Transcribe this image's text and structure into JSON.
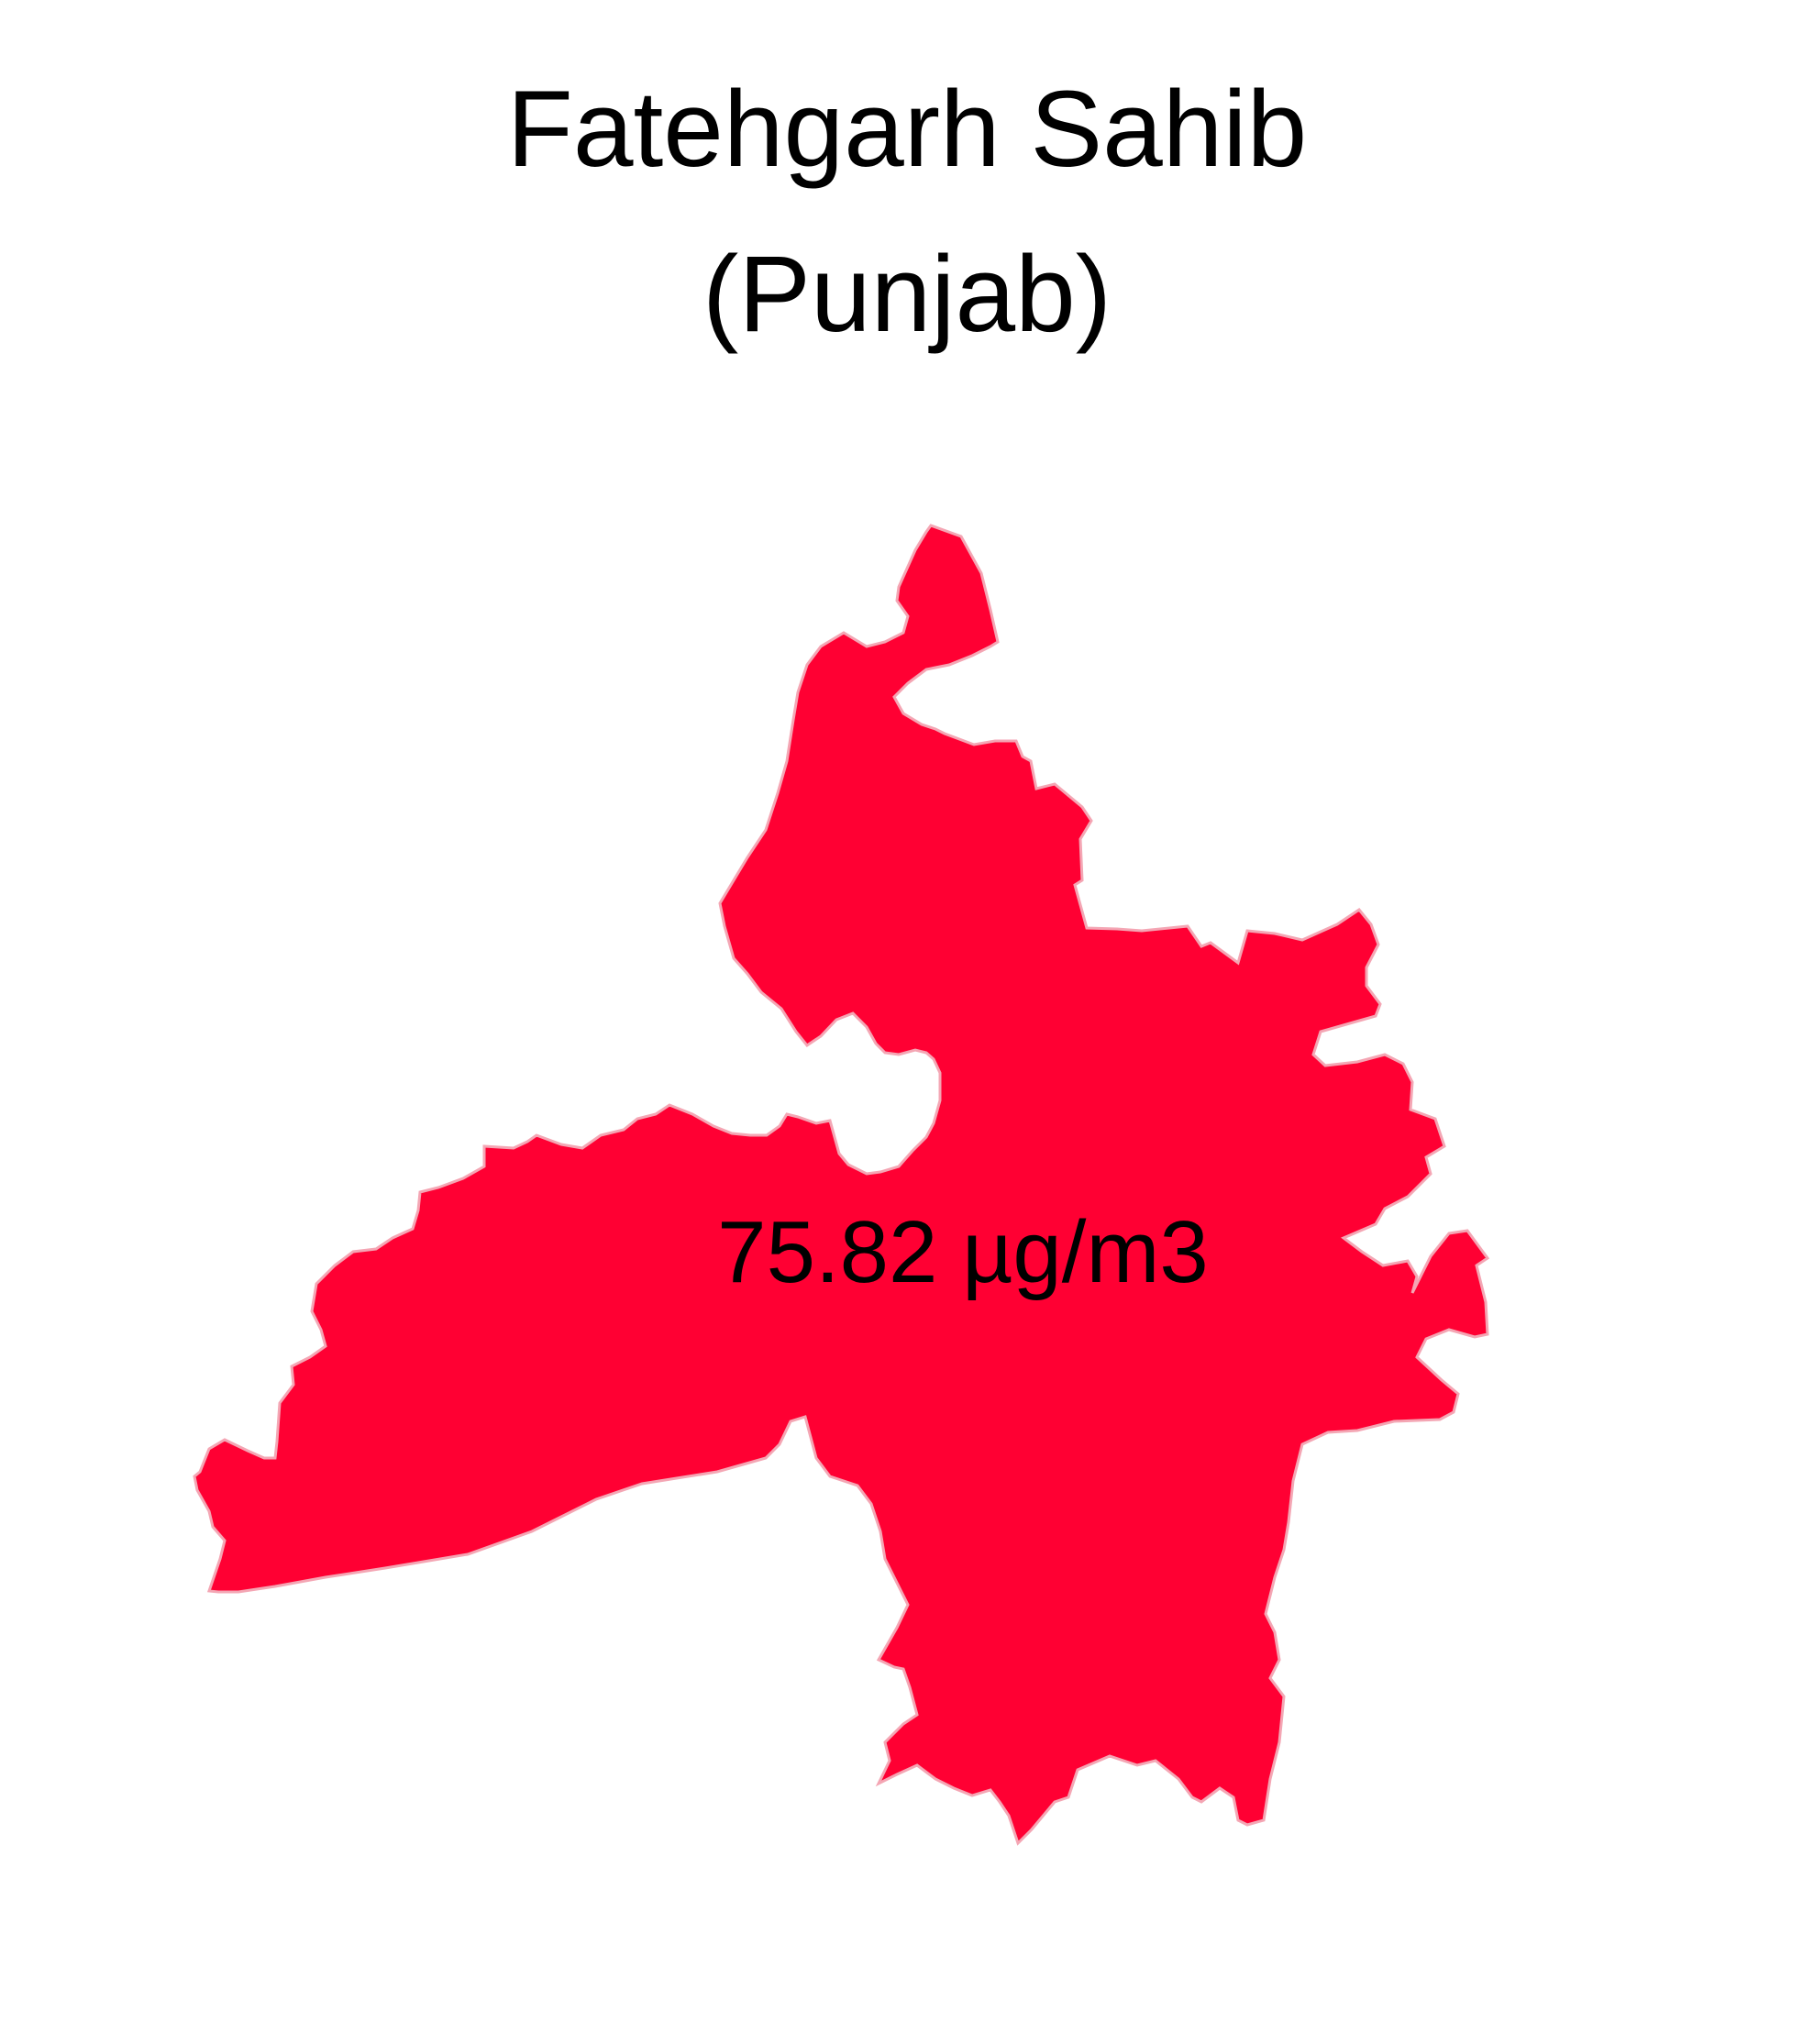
{
  "map": {
    "title_line_1": "Fatehgarh Sahib",
    "title_line_2": "(Punjab)",
    "value_label": "75.82 µg/m3",
    "region_fill": "#ff0033",
    "region_stroke": "#f4a6b4",
    "background": "#ffffff"
  }
}
